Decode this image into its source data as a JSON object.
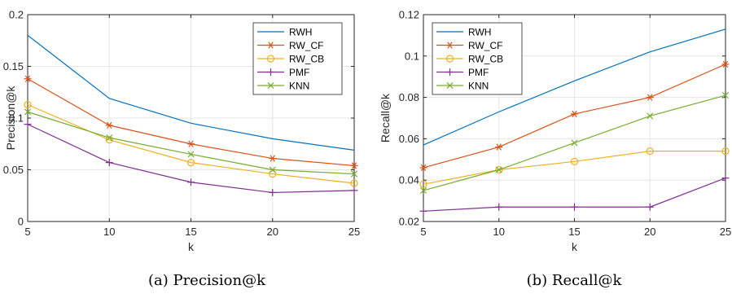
{
  "colors": {
    "RWH": "#0072BD",
    "RW_CF": "#D95319",
    "RW_CB": "#EDB120",
    "PMF": "#7E2F8E",
    "KNN": "#77AC30",
    "grid": "#e6e6e6",
    "axis": "#262626"
  },
  "chart_data": [
    {
      "type": "line",
      "caption": "(a)  Precision@k",
      "xlabel": "k",
      "ylabel": "Precision@k",
      "x": [
        5,
        10,
        15,
        20,
        25
      ],
      "xlim": [
        5,
        25
      ],
      "ylim": [
        0,
        0.2
      ],
      "xticks": [
        "5",
        "10",
        "15",
        "20",
        "25"
      ],
      "yticks": [
        "0",
        "0.05",
        "0.1",
        "0.15",
        "0.2"
      ],
      "grid": true,
      "legend_position": "top-right",
      "series": [
        {
          "name": "RWH",
          "marker": "none",
          "values": [
            0.18,
            0.119,
            0.095,
            0.08,
            0.069
          ]
        },
        {
          "name": "RW_CF",
          "marker": "asterisk",
          "values": [
            0.138,
            0.093,
            0.075,
            0.061,
            0.054
          ]
        },
        {
          "name": "RW_CB",
          "marker": "circle",
          "values": [
            0.113,
            0.079,
            0.057,
            0.046,
            0.037
          ]
        },
        {
          "name": "PMF",
          "marker": "plus",
          "values": [
            0.094,
            0.057,
            0.038,
            0.028,
            0.03
          ]
        },
        {
          "name": "KNN",
          "marker": "x",
          "values": [
            0.106,
            0.081,
            0.065,
            0.05,
            0.046
          ]
        }
      ]
    },
    {
      "type": "line",
      "caption": "(b)  Recall@k",
      "xlabel": "k",
      "ylabel": "Recall@k",
      "x": [
        5,
        10,
        15,
        20,
        25
      ],
      "xlim": [
        5,
        25
      ],
      "ylim": [
        0.02,
        0.12
      ],
      "xticks": [
        "5",
        "10",
        "15",
        "20",
        "25"
      ],
      "yticks": [
        "0.02",
        "0.04",
        "0.06",
        "0.08",
        "0.1",
        "0.12"
      ],
      "grid": true,
      "legend_position": "top-left",
      "series": [
        {
          "name": "RWH",
          "marker": "none",
          "values": [
            0.057,
            0.073,
            0.088,
            0.102,
            0.113
          ]
        },
        {
          "name": "RW_CF",
          "marker": "asterisk",
          "values": [
            0.046,
            0.056,
            0.072,
            0.08,
            0.096
          ]
        },
        {
          "name": "RW_CB",
          "marker": "circle",
          "values": [
            0.038,
            0.045,
            0.049,
            0.054,
            0.054
          ]
        },
        {
          "name": "PMF",
          "marker": "plus",
          "values": [
            0.025,
            0.027,
            0.027,
            0.027,
            0.041
          ]
        },
        {
          "name": "KNN",
          "marker": "x",
          "values": [
            0.035,
            0.045,
            0.058,
            0.071,
            0.081
          ]
        }
      ]
    }
  ]
}
